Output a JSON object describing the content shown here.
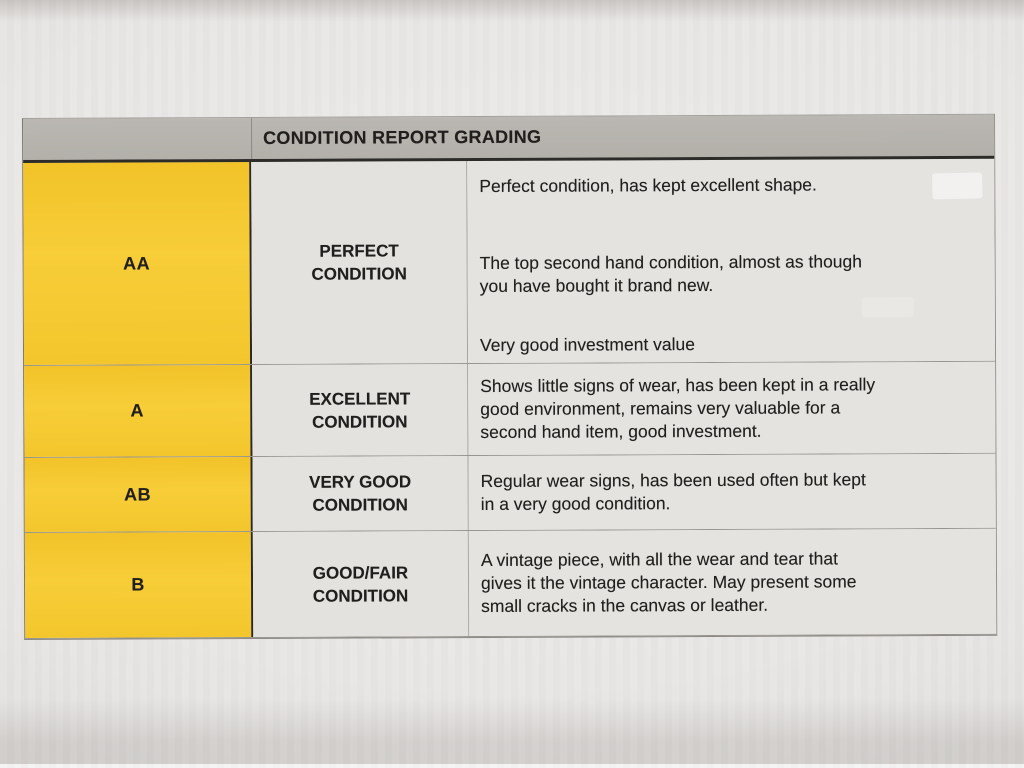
{
  "table": {
    "header": {
      "title": "CONDITION REPORT GRADING"
    },
    "rows": [
      {
        "grade": "AA",
        "condition_lines": [
          "PERFECT",
          "CONDITION"
        ],
        "paragraphs": [
          "Perfect condition, has kept excellent shape.",
          "The top second hand condition, almost as though\nyou have bought it brand new.",
          "Very good investment value"
        ]
      },
      {
        "grade": "A",
        "condition_lines": [
          "EXCELLENT",
          "CONDITION"
        ],
        "paragraphs": [
          "Shows little signs of wear, has been kept in a really\ngood environment, remains very valuable for a\nsecond hand item, good investment."
        ]
      },
      {
        "grade": "AB",
        "condition_lines": [
          "VERY GOOD",
          "CONDITION"
        ],
        "paragraphs": [
          "Regular wear signs, has been used often but kept\nin a very good condition."
        ]
      },
      {
        "grade": "B",
        "condition_lines": [
          "GOOD/FAIR",
          "CONDITION"
        ],
        "paragraphs": [
          "A vintage piece, with all the wear and tear that\ngives it the vintage character. May present some\nsmall cracks in the canvas or leather."
        ]
      }
    ],
    "colors": {
      "grade_column": "#f5c82f",
      "header_bar": "#b5b1ab",
      "cell_background": "#e4e2df",
      "paper": "#e9e7e5",
      "text": "#211f1d",
      "heavy_rule": "#2b2927"
    }
  }
}
